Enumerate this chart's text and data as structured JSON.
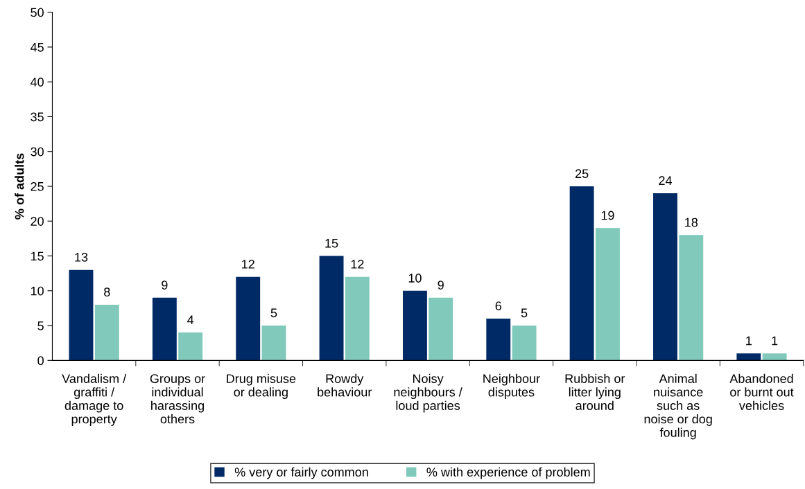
{
  "chart_data": {
    "type": "bar",
    "ylabel": "% of adults",
    "categories": [
      "Vandalism /\ngraffiti /\ndamage to\nproperty",
      "Groups or\nindividual\nharassing\nothers",
      "Drug misuse\nor dealing",
      "Rowdy\nbehaviour",
      "Noisy\nneighbours /\nloud parties",
      "Neighbour\ndisputes",
      "Rubbish or\nlitter lying\naround",
      "Animal\nnuisance\nsuch as\nnoise or dog\nfouling",
      "Abandoned\nor burnt out\nvehicles"
    ],
    "series": [
      {
        "name": "% very or fairly common",
        "color": "#002a66",
        "values": [
          13,
          9,
          12,
          15,
          10,
          6,
          25,
          24,
          1
        ]
      },
      {
        "name": "% with experience of problem",
        "color": "#80c9bb",
        "values": [
          8,
          4,
          5,
          12,
          9,
          5,
          19,
          18,
          1
        ]
      }
    ],
    "ylim": [
      0,
      50
    ],
    "yticks": [
      0,
      5,
      10,
      15,
      20,
      25,
      30,
      35,
      40,
      45,
      50
    ],
    "data_labels": true,
    "grid": false,
    "legend": "bottom"
  }
}
